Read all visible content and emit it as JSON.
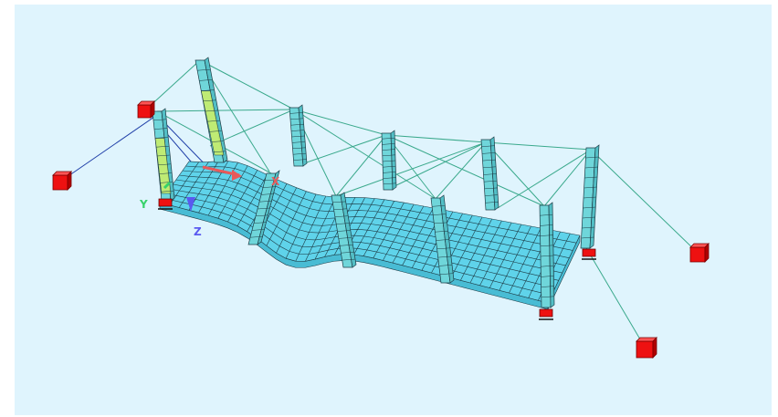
{
  "viewport": {
    "background": "#dff4fd"
  },
  "axes": {
    "x_label": "X",
    "y_label": "Y",
    "z_label": "Z",
    "x_color": "#e85a5a",
    "y_color": "#38d26a",
    "z_color": "#5a5af0"
  },
  "colors": {
    "slab": "#5fd3ea",
    "mesh": "#1d3c46",
    "column": "#6fd6da",
    "column_high": "#c8ee6a",
    "cable": "#3aa98c",
    "cable_front": "#1f3fa8",
    "anchor": "#ee1111",
    "support": "#ee1111"
  },
  "icons": {
    "support": "support-icon",
    "anchor": "anchor-block-icon",
    "axis": "axis-triad-icon"
  }
}
